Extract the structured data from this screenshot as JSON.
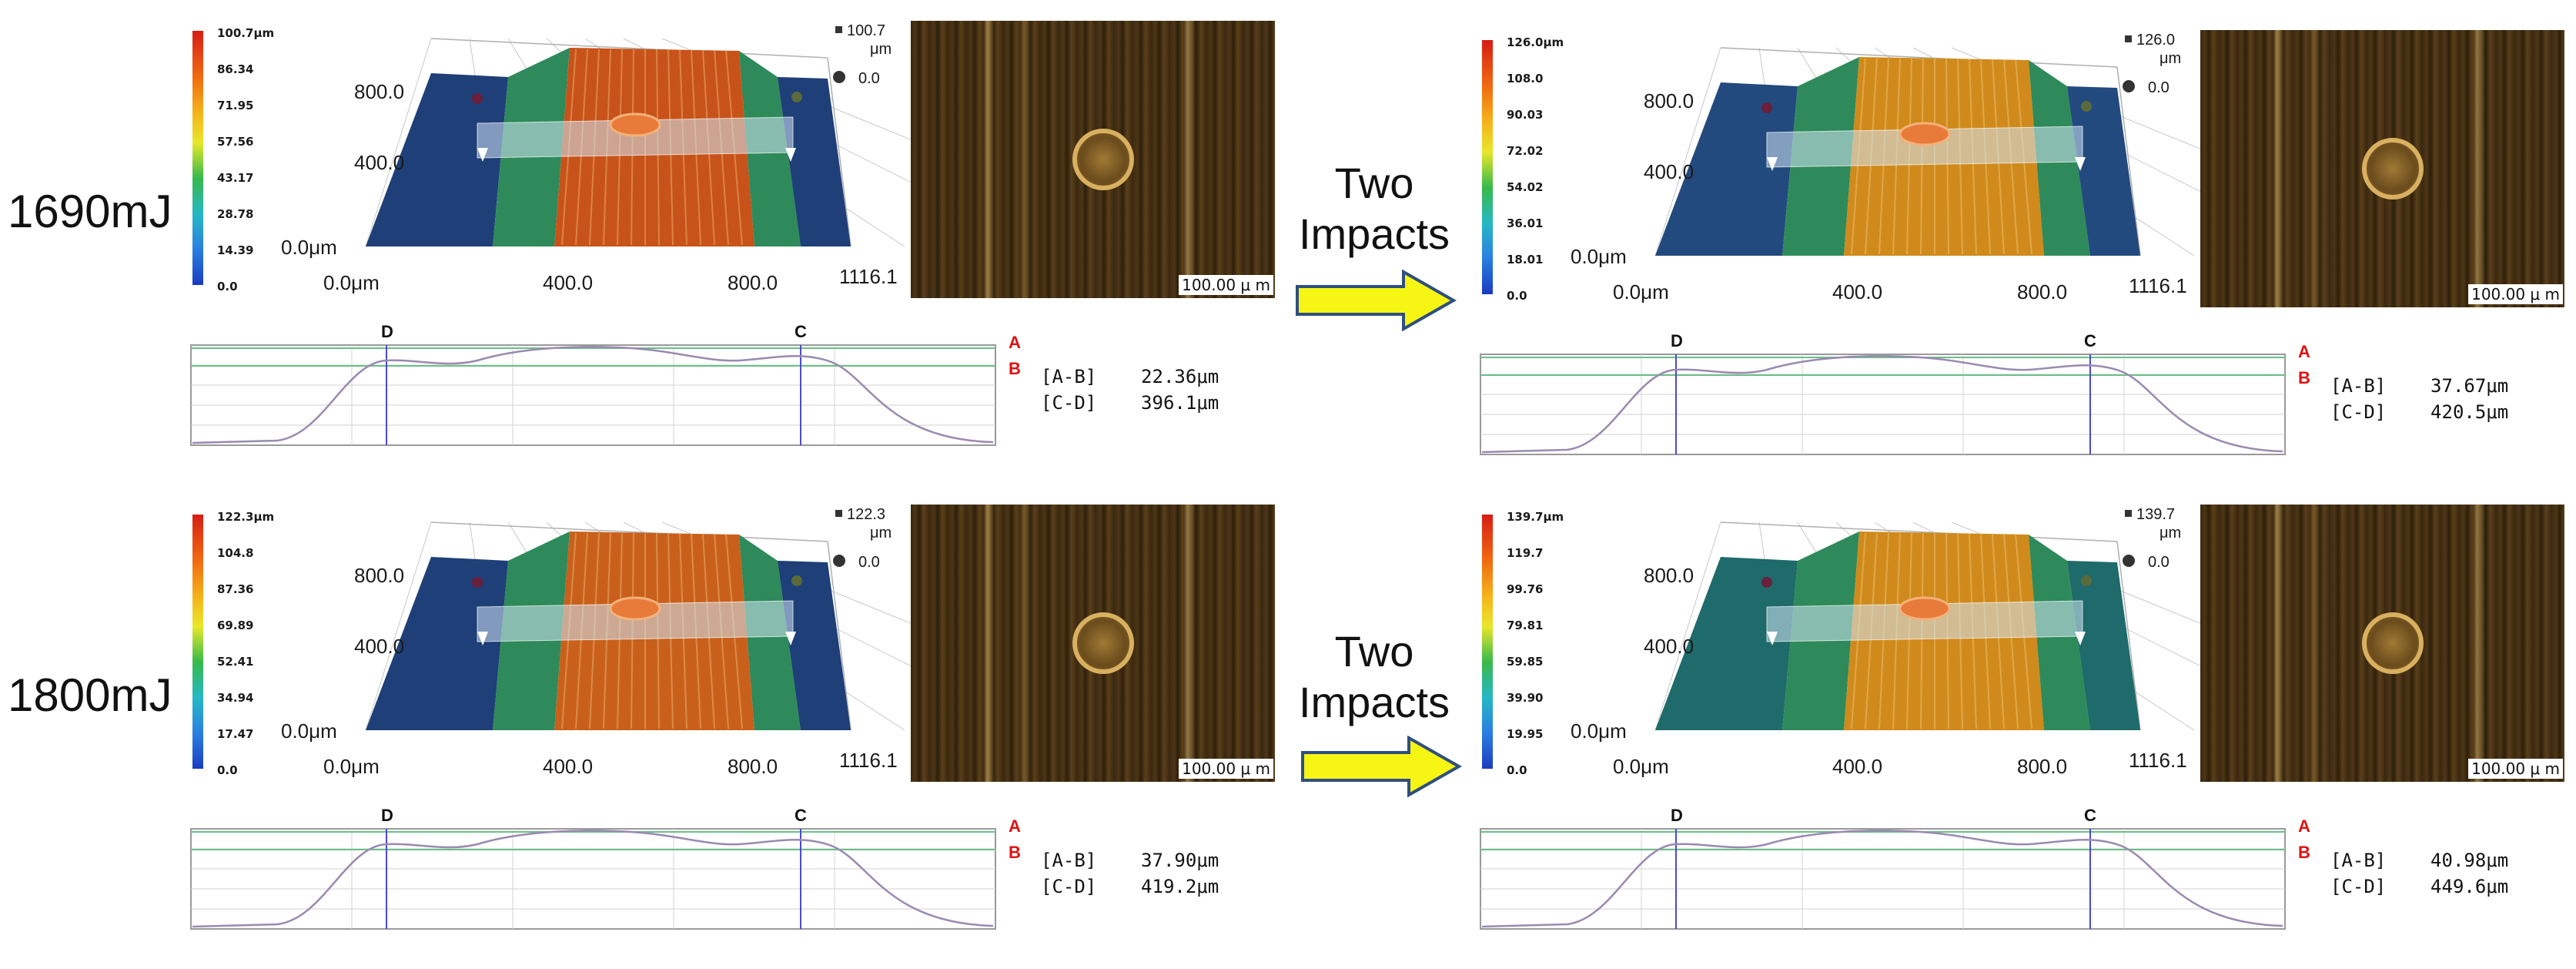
{
  "rows": [
    {
      "label": "1690mJ"
    },
    {
      "label": "1800mJ"
    }
  ],
  "arrow_text": "Two Impacts",
  "axes": {
    "x_ticks": [
      "0.0μm",
      "400.0",
      "800.0",
      "1116.1"
    ],
    "y_ticks": [
      "800.0",
      "400.0",
      "0.0μm"
    ]
  },
  "scale_bar": "100.00 μ m",
  "profile_labels": {
    "A": "A",
    "B": "B",
    "C": "C",
    "D": "D"
  },
  "panels": [
    {
      "id": "p1",
      "colorbar": [
        "100.7μm",
        "86.34",
        "71.95",
        "57.56",
        "43.17",
        "28.78",
        "14.39",
        "0.0"
      ],
      "z_max": "100.7",
      "z_unit": "μm",
      "z_min": "0.0",
      "meas_ab_label": "[A-B]",
      "meas_ab": "22.36μm",
      "meas_cd_label": "[C-D]",
      "meas_cd": "396.1μm",
      "surface_side": "#1f3f78",
      "surface_top": "#c8531a"
    },
    {
      "id": "p2",
      "colorbar": [
        "126.0μm",
        "108.0",
        "90.03",
        "72.02",
        "54.02",
        "36.01",
        "18.01",
        "0.0"
      ],
      "z_max": "126.0",
      "z_unit": "μm",
      "z_min": "0.0",
      "meas_ab_label": "[A-B]",
      "meas_ab": "37.67μm",
      "meas_cd_label": "[C-D]",
      "meas_cd": "420.5μm",
      "surface_side": "#234a7e",
      "surface_top": "#d08a1c"
    },
    {
      "id": "p3",
      "colorbar": [
        "122.3μm",
        "104.8",
        "87.36",
        "69.89",
        "52.41",
        "34.94",
        "17.47",
        "0.0"
      ],
      "z_max": "122.3",
      "z_unit": "μm",
      "z_min": "0.0",
      "meas_ab_label": "[A-B]",
      "meas_ab": "37.90μm",
      "meas_cd_label": "[C-D]",
      "meas_cd": "419.2μm",
      "surface_side": "#1f3f78",
      "surface_top": "#c8601c"
    },
    {
      "id": "p4",
      "colorbar": [
        "139.7μm",
        "119.7",
        "99.76",
        "79.81",
        "59.85",
        "39.90",
        "19.95",
        "0.0"
      ],
      "z_max": "139.7",
      "z_unit": "μm",
      "z_min": "0.0",
      "meas_ab_label": "[A-B]",
      "meas_ab": "40.98μm",
      "meas_cd_label": "[C-D]",
      "meas_cd": "449.6μm",
      "surface_side": "#1f6a6a",
      "surface_top": "#d08a1c"
    }
  ]
}
